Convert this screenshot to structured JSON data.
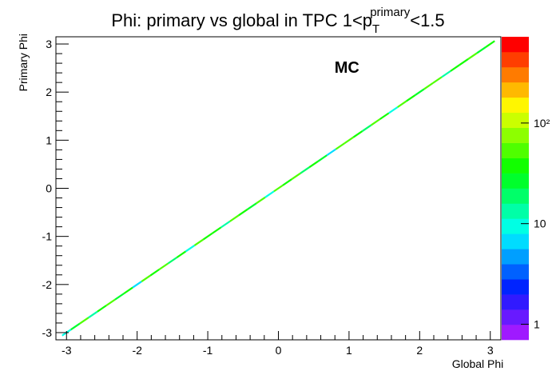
{
  "chart_data": {
    "type": "hist2d",
    "title_parts": [
      "Phi: primary vs global in TPC 1<p",
      "T",
      "primary",
      "<1.5"
    ],
    "x_label": "Global Phi",
    "y_label": "Primary Phi",
    "annotation": "MC",
    "annotation_at": [
      0.97,
      2.4
    ],
    "x": [
      -3,
      -2.875,
      -2.75,
      -2.625,
      -2.5,
      -2.375,
      -2.25,
      -2.125,
      -2,
      -1.875,
      -1.75,
      -1.625,
      -1.5,
      -1.375,
      -1.25,
      -1.125,
      -1,
      -0.875,
      -0.75,
      -0.625,
      -0.5,
      -0.375,
      -0.25,
      -0.125,
      0,
      0.125,
      0.25,
      0.375,
      0.5,
      0.625,
      0.75,
      0.875,
      1,
      1.125,
      1.25,
      1.375,
      1.5,
      1.625,
      1.75,
      1.875,
      2,
      2.125,
      2.25,
      2.375,
      2.5,
      2.625,
      2.75,
      2.875,
      3
    ],
    "y": [
      -3,
      -2.875,
      -2.75,
      -2.625,
      -2.5,
      -2.375,
      -2.25,
      -2.125,
      -2,
      -1.875,
      -1.75,
      -1.625,
      -1.5,
      -1.375,
      -1.25,
      -1.125,
      -1,
      -0.875,
      -0.75,
      -0.625,
      -0.5,
      -0.375,
      -0.25,
      -0.125,
      0,
      0.125,
      0.25,
      0.375,
      0.5,
      0.625,
      0.75,
      0.875,
      1,
      1.125,
      1.25,
      1.375,
      1.5,
      1.625,
      1.75,
      1.875,
      2,
      2.125,
      2.25,
      2.375,
      2.5,
      2.625,
      2.75,
      2.875,
      3
    ],
    "values": [
      8,
      30,
      45,
      12,
      40,
      55,
      25,
      35,
      6,
      48,
      38,
      60,
      20,
      42,
      9,
      50,
      33,
      44,
      15,
      58,
      36,
      28,
      47,
      10,
      52,
      39,
      62,
      18,
      41,
      30,
      7,
      46,
      54,
      34,
      22,
      49,
      43,
      11,
      57,
      37,
      26,
      45,
      59,
      14,
      40,
      32,
      51,
      24,
      35
    ],
    "xlim": [
      -3.15,
      3.15
    ],
    "ylim": [
      -3.15,
      3.15
    ],
    "xticks": [
      -3,
      -2,
      -1,
      0,
      1,
      2,
      3
    ],
    "yticks": [
      -3,
      -2,
      -1,
      0,
      1,
      2,
      3
    ],
    "zlim": [
      0.7,
      720
    ],
    "zlog": true,
    "zticks": [
      1,
      10,
      {
        "value": 100,
        "label": "10²"
      }
    ]
  }
}
